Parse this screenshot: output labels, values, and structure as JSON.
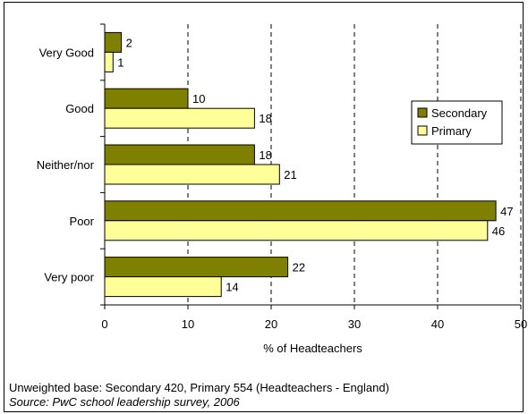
{
  "chart_data": {
    "type": "bar",
    "orientation": "horizontal",
    "categories": [
      "Very Good",
      "Good",
      "Neither/nor",
      "Poor",
      "Very poor"
    ],
    "series": [
      {
        "name": "Secondary",
        "color": "#808000",
        "values": [
          2,
          10,
          18,
          47,
          22
        ]
      },
      {
        "name": "Primary",
        "color": "#FFFF99",
        "values": [
          1,
          18,
          21,
          46,
          14
        ]
      }
    ],
    "xlabel": "% of Headteachers",
    "xlim": [
      0,
      50
    ],
    "xticks": [
      "0",
      "10",
      "20",
      "30",
      "40",
      "50"
    ],
    "grid": "vertical dashed",
    "legend_position": "right"
  },
  "footnote": {
    "base": "Unweighted base: Secondary 420, Primary 554 (Headteachers - England)",
    "source": "Source: PwC school leadership survey, 2006"
  }
}
